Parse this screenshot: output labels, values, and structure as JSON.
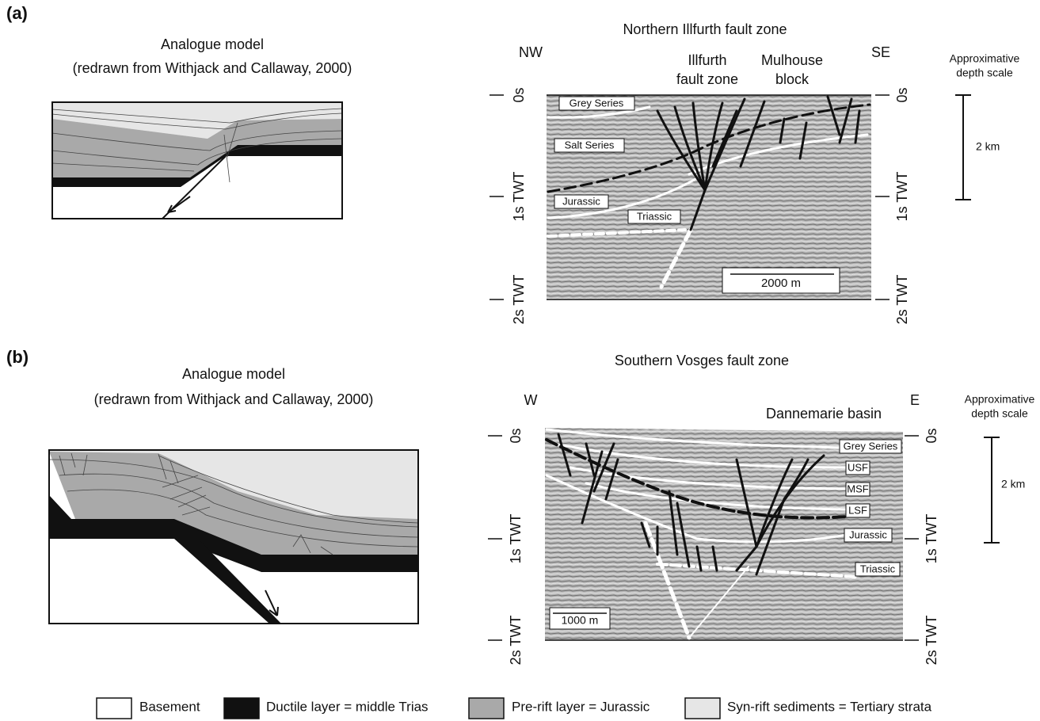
{
  "panels": [
    {
      "label": "(a)",
      "model": {
        "title": "Analogue model",
        "subtitle": "(redrawn from Withjack and Callaway, 2000)"
      },
      "section": {
        "title": "Northern Illfurth fault zone",
        "left_end": "NW",
        "right_end": "SE",
        "features": [
          [
            "Illfurth",
            "fault zone"
          ],
          [
            "Mulhouse",
            "block"
          ]
        ],
        "time_ticks": [
          "0s",
          "1s TWT",
          "2s TWT"
        ],
        "layers": [
          "Grey Series",
          "Salt Series",
          "Jurassic",
          "Triassic"
        ],
        "scale_bar": "2000 m"
      },
      "depth_scale": {
        "title": [
          "Approximative",
          "depth scale"
        ],
        "label": "2 km"
      }
    },
    {
      "label": "(b)",
      "model": {
        "title": "Analogue model",
        "subtitle": "(redrawn from Withjack and Callaway, 2000)"
      },
      "section": {
        "title": "Southern Vosges fault zone",
        "left_end": "W",
        "right_end": "E",
        "features": [
          [
            "Dannemarie basin"
          ]
        ],
        "time_ticks": [
          "0s",
          "1s TWT",
          "2s TWT"
        ],
        "layers": [
          "Grey Series",
          "USF",
          "MSF",
          "LSF",
          "Jurassic",
          "Triassic"
        ],
        "scale_bar": "1000 m"
      },
      "depth_scale": {
        "title": [
          "Approximative",
          "depth scale"
        ],
        "label": "2 km"
      }
    }
  ],
  "legend": [
    "Basement",
    "Ductile layer = middle Trias",
    "Pre-rift layer = Jurassic",
    "Syn-rift sediments = Tertiary strata"
  ]
}
